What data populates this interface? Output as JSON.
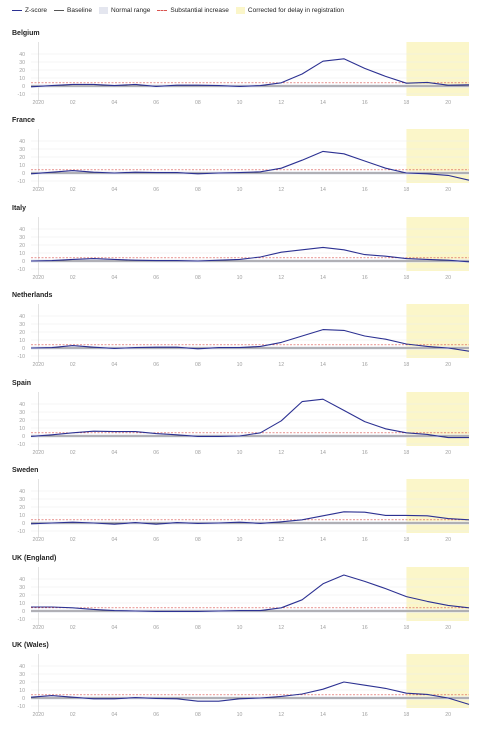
{
  "legend": {
    "zscore": "Z-score",
    "baseline": "Baseline",
    "normal_range": "Normal range",
    "substantial_increase": "Substantial increase",
    "corrected": "Corrected for delay in registration"
  },
  "colors": {
    "zscore": "#2c3192",
    "baseline": "#555555",
    "normal_range": "#e4e6ef",
    "substantial_increase": "#d9534f",
    "corrected": "#fbf6c9",
    "grid": "#ececec",
    "tick_text": "#a0a0a0"
  },
  "chart_data": [
    {
      "type": "line",
      "title": "Belgium",
      "x": [
        0,
        1,
        2,
        3,
        4,
        5,
        6,
        7,
        8,
        9,
        10,
        11,
        12,
        13,
        14,
        15,
        16,
        17,
        18,
        19,
        20,
        21
      ],
      "series": [
        {
          "name": "Z-score",
          "values": [
            -1,
            0.5,
            2,
            2,
            0.5,
            2,
            -0.5,
            1,
            1,
            0.5,
            -0.5,
            0.5,
            4,
            15,
            31,
            34,
            22,
            12,
            3.5,
            4.5,
            1,
            1.5
          ]
        }
      ],
      "x_ticks": [
        "2020",
        "02",
        "04",
        "06",
        "08",
        "10",
        "12",
        "14",
        "16",
        "18",
        "20"
      ],
      "yticks": [
        40,
        30,
        20,
        10,
        0,
        -10
      ],
      "ylim": [
        -10,
        50
      ],
      "substantial_increase": 4,
      "normal_range": [
        -2,
        2
      ],
      "corrected_from": 18
    },
    {
      "type": "line",
      "title": "France",
      "x": [
        0,
        1,
        2,
        3,
        4,
        5,
        6,
        7,
        8,
        9,
        10,
        11,
        12,
        13,
        14,
        15,
        16,
        17,
        18,
        19,
        20,
        21
      ],
      "series": [
        {
          "name": "Z-score",
          "values": [
            -1,
            1,
            3,
            1,
            0,
            1,
            0.5,
            0.5,
            -1,
            0,
            0.5,
            1.5,
            6,
            16,
            27,
            24,
            15,
            6,
            0,
            -1,
            -3,
            -9
          ]
        }
      ],
      "x_ticks": [
        "2020",
        "02",
        "04",
        "06",
        "08",
        "10",
        "12",
        "14",
        "16",
        "18",
        "20"
      ],
      "yticks": [
        40,
        30,
        20,
        10,
        0,
        -10
      ],
      "ylim": [
        -10,
        50
      ],
      "substantial_increase": 4,
      "normal_range": [
        -2,
        2
      ],
      "corrected_from": 18
    },
    {
      "type": "line",
      "title": "Italy",
      "x": [
        0,
        1,
        2,
        3,
        4,
        5,
        6,
        7,
        8,
        9,
        10,
        11,
        12,
        13,
        14,
        15,
        16,
        17,
        18,
        19,
        20,
        21
      ],
      "series": [
        {
          "name": "Z-score",
          "values": [
            0,
            0.5,
            2,
            3,
            2,
            1,
            0.5,
            0.5,
            0,
            1,
            2,
            5,
            11,
            14,
            17,
            14,
            8,
            6,
            3,
            2,
            1,
            -1
          ]
        }
      ],
      "x_ticks": [
        "2020",
        "02",
        "04",
        "06",
        "08",
        "10",
        "12",
        "14",
        "16",
        "18",
        "20"
      ],
      "yticks": [
        40,
        30,
        20,
        10,
        0,
        -10
      ],
      "ylim": [
        -10,
        50
      ],
      "substantial_increase": 4,
      "normal_range": [
        -2,
        2
      ],
      "corrected_from": 18
    },
    {
      "type": "line",
      "title": "Netherlands",
      "x": [
        0,
        1,
        2,
        3,
        4,
        5,
        6,
        7,
        8,
        9,
        10,
        11,
        12,
        13,
        14,
        15,
        16,
        17,
        18,
        19,
        20,
        21
      ],
      "series": [
        {
          "name": "Z-score",
          "values": [
            0,
            0.5,
            3,
            1,
            -0.5,
            0.5,
            1,
            1,
            -1,
            0.5,
            0.5,
            2,
            7,
            15,
            23,
            22,
            15,
            11,
            5,
            2,
            0,
            -4
          ]
        }
      ],
      "x_ticks": [
        "2020",
        "02",
        "04",
        "06",
        "08",
        "10",
        "12",
        "14",
        "16",
        "18",
        "20"
      ],
      "yticks": [
        40,
        30,
        20,
        10,
        0,
        -10
      ],
      "ylim": [
        -10,
        50
      ],
      "substantial_increase": 4,
      "normal_range": [
        -2,
        2
      ],
      "corrected_from": 18
    },
    {
      "type": "line",
      "title": "Spain",
      "x": [
        0,
        1,
        2,
        3,
        4,
        5,
        6,
        7,
        8,
        9,
        10,
        11,
        12,
        13,
        14,
        15,
        16,
        17,
        18,
        19,
        20,
        21
      ],
      "series": [
        {
          "name": "Z-score",
          "values": [
            -0.5,
            1.5,
            4,
            6,
            5.5,
            5.5,
            3,
            1.5,
            -0.5,
            -0.5,
            0,
            4,
            19,
            43,
            46,
            32,
            18,
            9,
            4,
            2,
            -2,
            -2
          ]
        }
      ],
      "x_ticks": [
        "2020",
        "02",
        "04",
        "06",
        "08",
        "10",
        "12",
        "14",
        "16",
        "18",
        "20"
      ],
      "yticks": [
        40,
        30,
        20,
        10,
        0,
        -10
      ],
      "ylim": [
        -10,
        50
      ],
      "substantial_increase": 4,
      "normal_range": [
        -2,
        2
      ],
      "corrected_from": 18
    },
    {
      "type": "line",
      "title": "Sweden",
      "x": [
        0,
        1,
        2,
        3,
        4,
        5,
        6,
        7,
        8,
        9,
        10,
        11,
        12,
        13,
        14,
        15,
        16,
        17,
        18,
        19,
        20,
        21
      ],
      "series": [
        {
          "name": "Z-score",
          "values": [
            -1,
            0,
            1,
            0,
            -1.5,
            0.5,
            -1.5,
            0.5,
            -0.5,
            0,
            1,
            -0.5,
            1.5,
            4,
            9,
            14,
            13.5,
            9.5,
            9.5,
            9,
            5.5,
            4
          ]
        }
      ],
      "x_ticks": [
        "2020",
        "02",
        "04",
        "06",
        "08",
        "10",
        "12",
        "14",
        "16",
        "18",
        "20"
      ],
      "yticks": [
        40,
        30,
        20,
        10,
        0,
        -10
      ],
      "ylim": [
        -10,
        50
      ],
      "substantial_increase": 4,
      "normal_range": [
        -2,
        2
      ],
      "corrected_from": 18
    },
    {
      "type": "line",
      "title": "UK (England)",
      "x": [
        0,
        1,
        2,
        3,
        4,
        5,
        6,
        7,
        8,
        9,
        10,
        11,
        12,
        13,
        14,
        15,
        16,
        17,
        18,
        19,
        20,
        21
      ],
      "series": [
        {
          "name": "Z-score",
          "values": [
            5,
            5,
            4,
            2,
            0.5,
            0,
            -0.5,
            -0.5,
            -0.5,
            0,
            0.5,
            0.5,
            4,
            14,
            34,
            45,
            37,
            28,
            18,
            12,
            7,
            4
          ]
        }
      ],
      "x_ticks": [
        "2020",
        "02",
        "04",
        "06",
        "08",
        "10",
        "12",
        "14",
        "16",
        "18",
        "20"
      ],
      "yticks": [
        40,
        30,
        20,
        10,
        0,
        -10
      ],
      "ylim": [
        -10,
        50
      ],
      "substantial_increase": 4,
      "normal_range": [
        -2,
        2
      ],
      "corrected_from": 18
    },
    {
      "type": "line",
      "title": "UK (Wales)",
      "x": [
        0,
        1,
        2,
        3,
        4,
        5,
        6,
        7,
        8,
        9,
        10,
        11,
        12,
        13,
        14,
        15,
        16,
        17,
        18,
        19,
        20,
        21
      ],
      "series": [
        {
          "name": "Z-score",
          "values": [
            1,
            3,
            1,
            -1,
            -1,
            0.5,
            -0.5,
            -1,
            -4,
            -4,
            -1,
            0,
            2,
            5,
            11,
            20,
            16,
            12,
            6,
            4.5,
            0,
            -8
          ]
        }
      ],
      "x_ticks": [
        "2020",
        "02",
        "04",
        "06",
        "08",
        "10",
        "12",
        "14",
        "16",
        "18",
        "20"
      ],
      "yticks": [
        40,
        30,
        20,
        10,
        0,
        -10
      ],
      "ylim": [
        -10,
        50
      ],
      "substantial_increase": 4,
      "normal_range": [
        -2,
        2
      ],
      "corrected_from": 18
    }
  ]
}
